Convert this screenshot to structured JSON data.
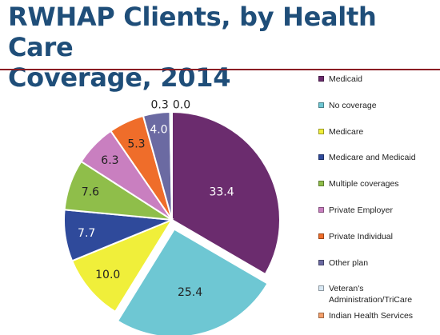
{
  "title_line1": "RWHAP Clients, by Health Care",
  "title_line2": "Coverage, 2014",
  "chart_data": {
    "type": "pie",
    "title": "RWHAP Clients, by Health Care Coverage, 2014",
    "categories": [
      "Medicaid",
      "No coverage",
      "Medicare",
      "Medicare and Medicaid",
      "Multiple coverages",
      "Private Employer",
      "Private Individual",
      "Other plan",
      "Veteran's Administration/TriCare",
      "Indian Health Services"
    ],
    "values": [
      33.4,
      25.4,
      10.0,
      7.7,
      7.6,
      6.3,
      5.3,
      4.0,
      0.3,
      0.0
    ],
    "labels": [
      "33.4",
      "25.4",
      "10.0",
      "7.7",
      "7.6",
      "6.3",
      "5.3",
      "4.0",
      "0.3",
      "0.0"
    ],
    "colors": [
      "#6b2c6e",
      "#6ec7d3",
      "#f0ef3a",
      "#2f4a9b",
      "#8fbe4a",
      "#c97fc0",
      "#ef6d2a",
      "#6b6aa2",
      "#d8e8f4",
      "#f4a06b"
    ],
    "exploded": "No coverage",
    "legend_position": "right"
  }
}
